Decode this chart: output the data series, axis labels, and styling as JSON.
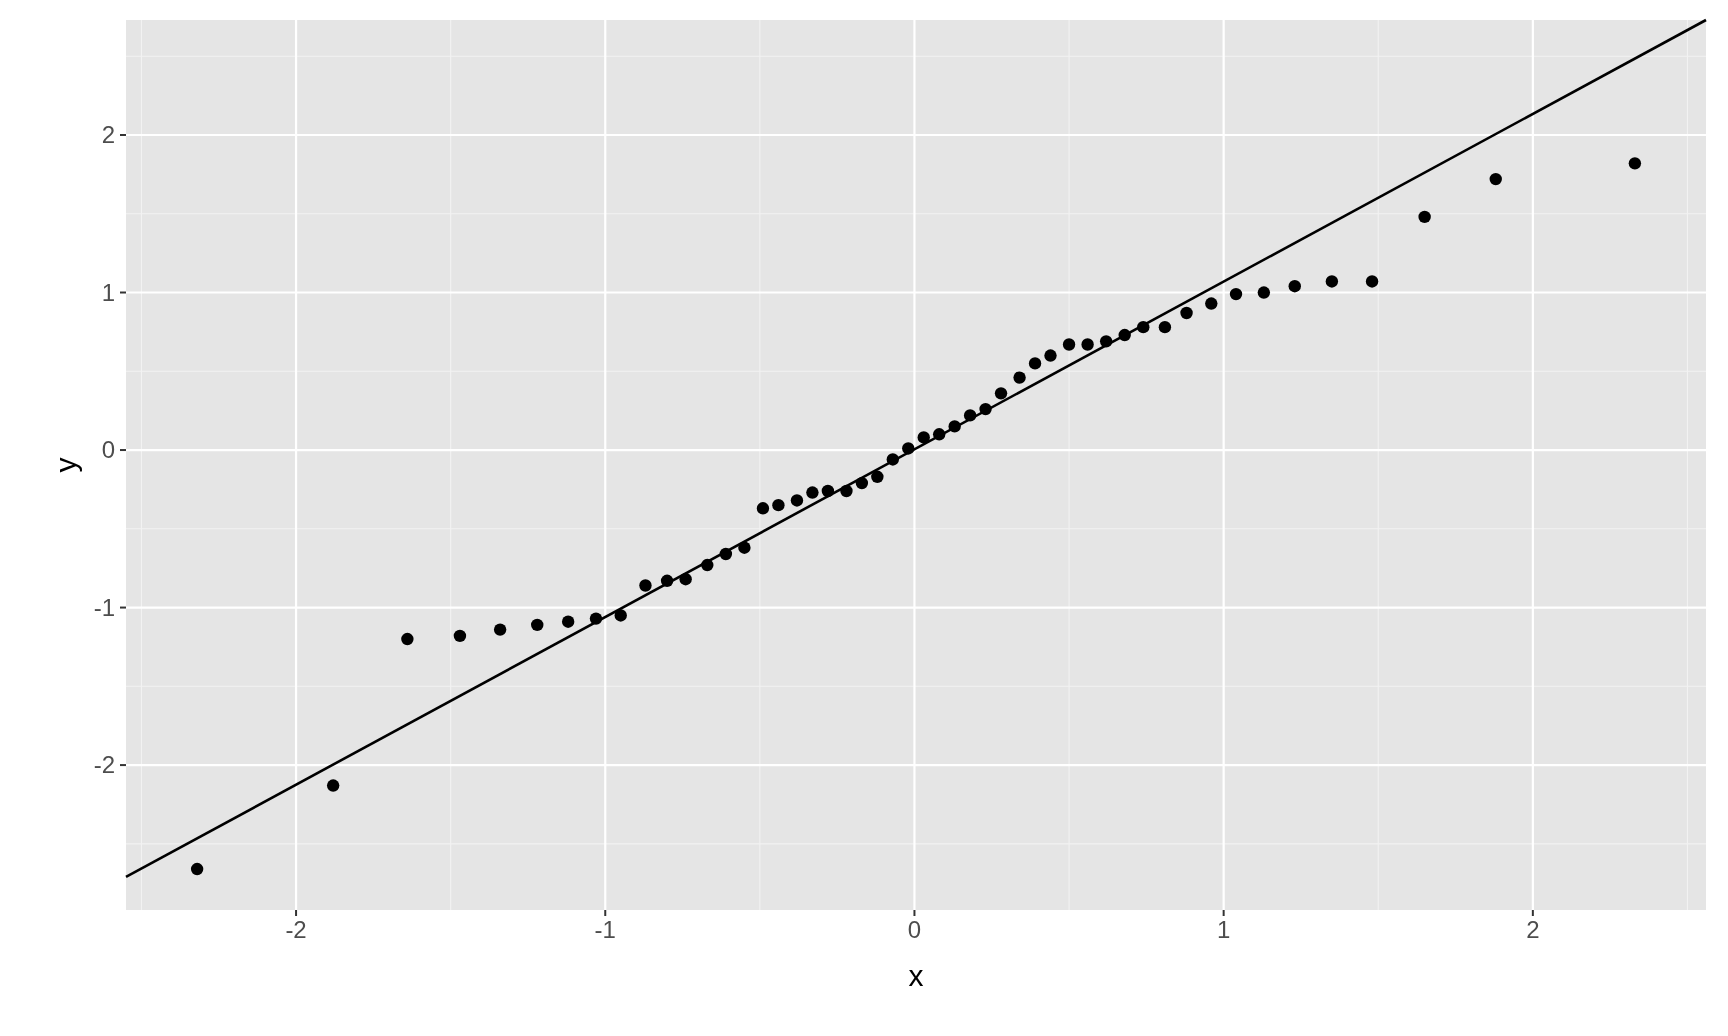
{
  "chart_data": {
    "type": "scatter",
    "xlabel": "x",
    "ylabel": "y",
    "xlim": [
      -2.55,
      2.56
    ],
    "ylim": [
      -2.92,
      2.73
    ],
    "xticks": [
      -2,
      -1,
      0,
      1,
      2
    ],
    "yticks": [
      -2,
      -1,
      0,
      1,
      2
    ],
    "grid": true,
    "series": [
      {
        "type": "scatter",
        "marker": "circle",
        "color": "#000000",
        "x": [
          -2.32,
          -1.88,
          -1.64,
          -1.47,
          -1.34,
          -1.22,
          -1.12,
          -1.03,
          -0.95,
          -0.87,
          -0.8,
          -0.74,
          -0.67,
          -0.61,
          -0.55,
          -0.49,
          -0.44,
          -0.38,
          -0.33,
          -0.28,
          -0.22,
          -0.17,
          -0.12,
          -0.07,
          -0.02,
          0.03,
          0.08,
          0.13,
          0.18,
          0.23,
          0.28,
          0.34,
          0.39,
          0.44,
          0.5,
          0.56,
          0.62,
          0.68,
          0.74,
          0.81,
          0.88,
          0.96,
          1.04,
          1.13,
          1.23,
          1.35,
          1.48,
          1.65,
          1.88,
          2.33
        ],
        "values": [
          -2.66,
          -2.13,
          -1.2,
          -1.18,
          -1.14,
          -1.11,
          -1.09,
          -1.07,
          -1.05,
          -0.86,
          -0.83,
          -0.82,
          -0.73,
          -0.66,
          -0.62,
          -0.37,
          -0.35,
          -0.32,
          -0.27,
          -0.26,
          -0.26,
          -0.21,
          -0.17,
          -0.06,
          0.01,
          0.08,
          0.1,
          0.15,
          0.22,
          0.26,
          0.36,
          0.46,
          0.55,
          0.6,
          0.67,
          0.67,
          0.69,
          0.73,
          0.78,
          0.78,
          0.87,
          0.93,
          0.99,
          1.0,
          1.04,
          1.07,
          1.07,
          1.48,
          1.72,
          1.82
        ]
      },
      {
        "type": "line",
        "color": "#000000",
        "x": [
          -2.55,
          2.56
        ],
        "values": [
          -2.71,
          2.73
        ]
      }
    ]
  }
}
